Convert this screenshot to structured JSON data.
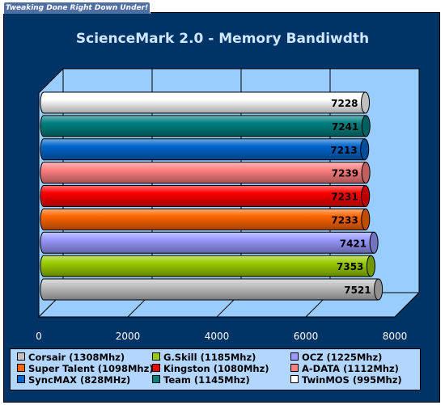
{
  "banner": {
    "text": "Tweaking Done Right Down Under!"
  },
  "chart_data": {
    "type": "bar",
    "orientation": "horizontal",
    "title": "ScienceMark 2.0 - Memory Bandiwdth",
    "xlim": [
      0,
      8000
    ],
    "x_ticks": [
      0,
      2000,
      4000,
      6000,
      8000
    ],
    "x_tick_labels": [
      "0",
      "2000",
      "4000",
      "6000",
      "8000"
    ],
    "grid": true,
    "legend_position": "bottom",
    "series": [
      {
        "name": "Corsair (1308Mhz)",
        "value": 7521,
        "label": "7521",
        "color": "#c0c0c0"
      },
      {
        "name": "G.Skill (1185Mhz)",
        "value": 7353,
        "label": "7353",
        "color": "#99cc00"
      },
      {
        "name": "OCZ (1225Mhz)",
        "value": 7421,
        "label": "7421",
        "color": "#9999ff"
      },
      {
        "name": "Super Talent (1098Mhz)",
        "value": 7233,
        "label": "7233",
        "color": "#ff6600"
      },
      {
        "name": "Kingston (1080Mhz)",
        "value": 7231,
        "label": "7231",
        "color": "#ff0000"
      },
      {
        "name": "A-DATA (1112Mhz)",
        "value": 7239,
        "label": "7239",
        "color": "#ff8080"
      },
      {
        "name": "SyncMAX (828MHz)",
        "value": 7213,
        "label": "7213",
        "color": "#0066cc"
      },
      {
        "name": "Team (1145Mhz)",
        "value": 7241,
        "label": "7241",
        "color": "#008080"
      },
      {
        "name": "TwinMOS (995Mhz)",
        "value": 7228,
        "label": "7228",
        "color": "#ffffff"
      }
    ]
  }
}
